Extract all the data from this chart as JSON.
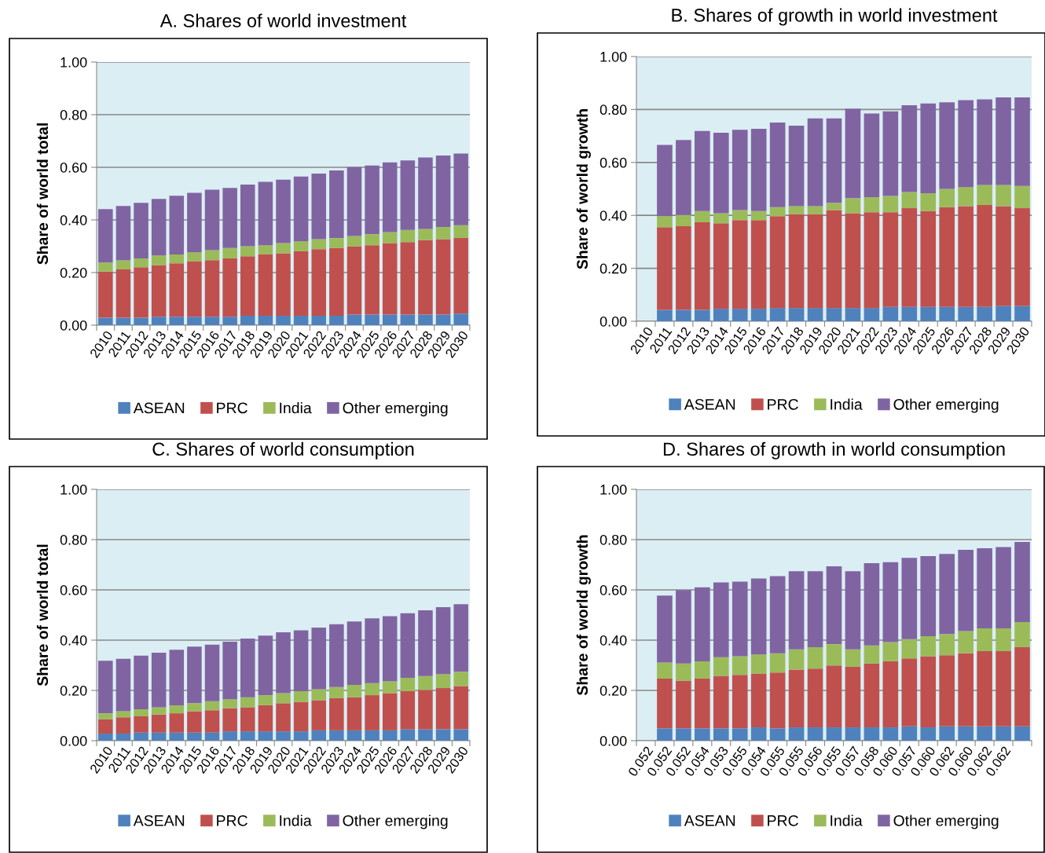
{
  "chart_data": [
    {
      "type": "bar",
      "stacked": true,
      "title": "A. Shares of world investment",
      "ylabel": "Share of world total",
      "categories": [
        "2010",
        "2011",
        "2012",
        "2013",
        "2014",
        "2015",
        "2016",
        "2017",
        "2018",
        "2019",
        "2020",
        "2021",
        "2022",
        "2023",
        "2024",
        "2025",
        "2026",
        "2027",
        "2028",
        "2029",
        "2030"
      ],
      "ylim": [
        0,
        1
      ],
      "yticks": [
        {
          "value": 0,
          "label": "0.00"
        },
        {
          "value": 0.2,
          "label": "0.20"
        },
        {
          "value": 0.4,
          "label": "0.40"
        },
        {
          "value": 0.6,
          "label": "0.60"
        },
        {
          "value": 0.8,
          "label": "0.80"
        },
        {
          "value": 1,
          "label": "1.00"
        }
      ],
      "grid": "y",
      "legend": "bottom",
      "series": [
        {
          "name": "ASEAN",
          "color": "#4f81bd",
          "values": [
            0.028,
            0.028,
            0.028,
            0.032,
            0.032,
            0.032,
            0.032,
            0.032,
            0.036,
            0.036,
            0.036,
            0.036,
            0.036,
            0.036,
            0.04,
            0.04,
            0.04,
            0.04,
            0.04,
            0.04,
            0.044
          ]
        },
        {
          "name": "PRC",
          "color": "#c0504d",
          "values": [
            0.176,
            0.184,
            0.192,
            0.196,
            0.203,
            0.211,
            0.215,
            0.222,
            0.226,
            0.234,
            0.237,
            0.245,
            0.253,
            0.257,
            0.26,
            0.264,
            0.272,
            0.276,
            0.283,
            0.287,
            0.287
          ]
        },
        {
          "name": "India",
          "color": "#9bbb59",
          "values": [
            0.034,
            0.034,
            0.034,
            0.037,
            0.034,
            0.034,
            0.038,
            0.039,
            0.038,
            0.034,
            0.039,
            0.038,
            0.038,
            0.038,
            0.039,
            0.042,
            0.042,
            0.046,
            0.043,
            0.046,
            0.049
          ]
        },
        {
          "name": "Other emerging",
          "color": "#8064a2",
          "values": [
            0.203,
            0.207,
            0.211,
            0.215,
            0.223,
            0.226,
            0.23,
            0.229,
            0.234,
            0.241,
            0.241,
            0.246,
            0.249,
            0.257,
            0.262,
            0.261,
            0.265,
            0.264,
            0.271,
            0.272,
            0.272
          ]
        }
      ]
    },
    {
      "type": "bar",
      "stacked": true,
      "title": "B. Shares of growth in world investment",
      "ylabel": "Share of world growth",
      "categories": [
        "2010",
        "2011",
        "2012",
        "2013",
        "2014",
        "2015",
        "2016",
        "2017",
        "2018",
        "2019",
        "2020",
        "2021",
        "2022",
        "2023",
        "2024",
        "2025",
        "2026",
        "2027",
        "2028",
        "2029",
        "2030"
      ],
      "ylim": [
        0,
        1
      ],
      "yticks": [
        {
          "value": 0,
          "label": "0.00"
        },
        {
          "value": 0.2,
          "label": "0.20"
        },
        {
          "value": 0.4,
          "label": "0.40"
        },
        {
          "value": 0.6,
          "label": "0.60"
        },
        {
          "value": 0.8,
          "label": "0.80"
        },
        {
          "value": 1,
          "label": "1.00"
        }
      ],
      "grid": "y",
      "legend": "bottom",
      "series": [
        {
          "name": "ASEAN",
          "color": "#4f81bd",
          "values": [
            null,
            0.043,
            0.043,
            0.043,
            0.047,
            0.047,
            0.047,
            0.05,
            0.05,
            0.05,
            0.05,
            0.05,
            0.05,
            0.054,
            0.054,
            0.054,
            0.054,
            0.054,
            0.054,
            0.058,
            0.058
          ]
        },
        {
          "name": "PRC",
          "color": "#c0504d",
          "values": [
            null,
            0.312,
            0.316,
            0.331,
            0.323,
            0.335,
            0.335,
            0.347,
            0.355,
            0.355,
            0.37,
            0.358,
            0.362,
            0.358,
            0.373,
            0.362,
            0.377,
            0.381,
            0.385,
            0.377,
            0.369
          ]
        },
        {
          "name": "India",
          "color": "#9bbb59",
          "values": [
            null,
            0.042,
            0.042,
            0.042,
            0.038,
            0.038,
            0.034,
            0.034,
            0.03,
            0.03,
            0.027,
            0.057,
            0.057,
            0.061,
            0.061,
            0.068,
            0.069,
            0.072,
            0.076,
            0.08,
            0.084
          ]
        },
        {
          "name": "Other emerging",
          "color": "#8064a2",
          "values": [
            null,
            0.269,
            0.284,
            0.303,
            0.304,
            0.303,
            0.311,
            0.32,
            0.304,
            0.331,
            0.319,
            0.338,
            0.316,
            0.32,
            0.328,
            0.339,
            0.327,
            0.328,
            0.323,
            0.331,
            0.335
          ]
        }
      ]
    },
    {
      "type": "bar",
      "stacked": true,
      "title": "C. Shares of world consumption",
      "ylabel": "Share of world total",
      "categories": [
        "2010",
        "2011",
        "2012",
        "2013",
        "2014",
        "2015",
        "2016",
        "2017",
        "2018",
        "2019",
        "2020",
        "2021",
        "2022",
        "2023",
        "2024",
        "2025",
        "2026",
        "2027",
        "2028",
        "2029",
        "2030"
      ],
      "ylim": [
        0,
        1
      ],
      "yticks": [
        {
          "value": 0,
          "label": "0.00"
        },
        {
          "value": 0.2,
          "label": "0.20"
        },
        {
          "value": 0.4,
          "label": "0.40"
        },
        {
          "value": 0.6,
          "label": "0.60"
        },
        {
          "value": 0.8,
          "label": "0.80"
        },
        {
          "value": 1,
          "label": "1.00"
        }
      ],
      "grid": "y",
      "legend": "bottom",
      "series": [
        {
          "name": "ASEAN",
          "color": "#4f81bd",
          "values": [
            0.028,
            0.028,
            0.032,
            0.032,
            0.032,
            0.032,
            0.032,
            0.037,
            0.037,
            0.037,
            0.037,
            0.037,
            0.041,
            0.041,
            0.041,
            0.041,
            0.041,
            0.045,
            0.045,
            0.045,
            0.045
          ]
        },
        {
          "name": "PRC",
          "color": "#c0504d",
          "values": [
            0.057,
            0.065,
            0.065,
            0.072,
            0.077,
            0.085,
            0.089,
            0.092,
            0.096,
            0.104,
            0.112,
            0.117,
            0.12,
            0.128,
            0.132,
            0.14,
            0.148,
            0.152,
            0.157,
            0.164,
            0.172
          ]
        },
        {
          "name": "India",
          "color": "#9bbb59",
          "values": [
            0.024,
            0.024,
            0.028,
            0.029,
            0.032,
            0.032,
            0.036,
            0.036,
            0.04,
            0.04,
            0.04,
            0.043,
            0.044,
            0.044,
            0.049,
            0.048,
            0.048,
            0.053,
            0.055,
            0.056,
            0.057
          ]
        },
        {
          "name": "Other emerging",
          "color": "#8064a2",
          "values": [
            0.209,
            0.209,
            0.213,
            0.217,
            0.221,
            0.225,
            0.225,
            0.229,
            0.233,
            0.237,
            0.242,
            0.242,
            0.245,
            0.25,
            0.252,
            0.258,
            0.258,
            0.257,
            0.262,
            0.266,
            0.269
          ]
        }
      ]
    },
    {
      "type": "bar",
      "stacked": true,
      "title": "D. Shares of growth in world consumption",
      "ylabel": "Share of world growth",
      "categories": [
        "0.052",
        "0.052",
        "0.052",
        "0.054",
        "0.053",
        "0.055",
        "0.054",
        "0.055",
        "0.055",
        "0.056",
        "0.055",
        "0.057",
        "0.058",
        "0.060",
        "0.057",
        "0.060",
        "0.062",
        "0.060",
        "0.062",
        "0.062",
        null
      ],
      "ylim": [
        0,
        1
      ],
      "yticks": [
        {
          "value": 0,
          "label": "0.00"
        },
        {
          "value": 0.2,
          "label": "0.20"
        },
        {
          "value": 0.4,
          "label": "0.40"
        },
        {
          "value": 0.6,
          "label": "0.60"
        },
        {
          "value": 0.8,
          "label": "0.80"
        },
        {
          "value": 1,
          "label": "1.00"
        }
      ],
      "grid": "y",
      "legend": "bottom",
      "series": [
        {
          "name": "ASEAN",
          "color": "#4f81bd",
          "values": [
            null,
            0.049,
            0.049,
            0.049,
            0.049,
            0.049,
            0.053,
            0.049,
            0.053,
            0.053,
            0.053,
            0.053,
            0.053,
            0.053,
            0.057,
            0.053,
            0.057,
            0.057,
            0.057,
            0.057,
            0.057
          ]
        },
        {
          "name": "PRC",
          "color": "#c0504d",
          "values": [
            null,
            0.198,
            0.19,
            0.198,
            0.209,
            0.213,
            0.214,
            0.222,
            0.23,
            0.234,
            0.246,
            0.241,
            0.254,
            0.263,
            0.27,
            0.283,
            0.283,
            0.291,
            0.299,
            0.299,
            0.315
          ]
        },
        {
          "name": "India",
          "color": "#9bbb59",
          "values": [
            null,
            0.064,
            0.068,
            0.069,
            0.074,
            0.074,
            0.076,
            0.077,
            0.08,
            0.085,
            0.085,
            0.069,
            0.072,
            0.076,
            0.077,
            0.08,
            0.084,
            0.088,
            0.091,
            0.091,
            0.1
          ]
        },
        {
          "name": "Other emerging",
          "color": "#8064a2",
          "values": [
            null,
            0.266,
            0.292,
            0.294,
            0.298,
            0.297,
            0.302,
            0.307,
            0.311,
            0.302,
            0.31,
            0.311,
            0.327,
            0.318,
            0.323,
            0.318,
            0.319,
            0.323,
            0.319,
            0.323,
            0.319
          ]
        }
      ]
    }
  ]
}
